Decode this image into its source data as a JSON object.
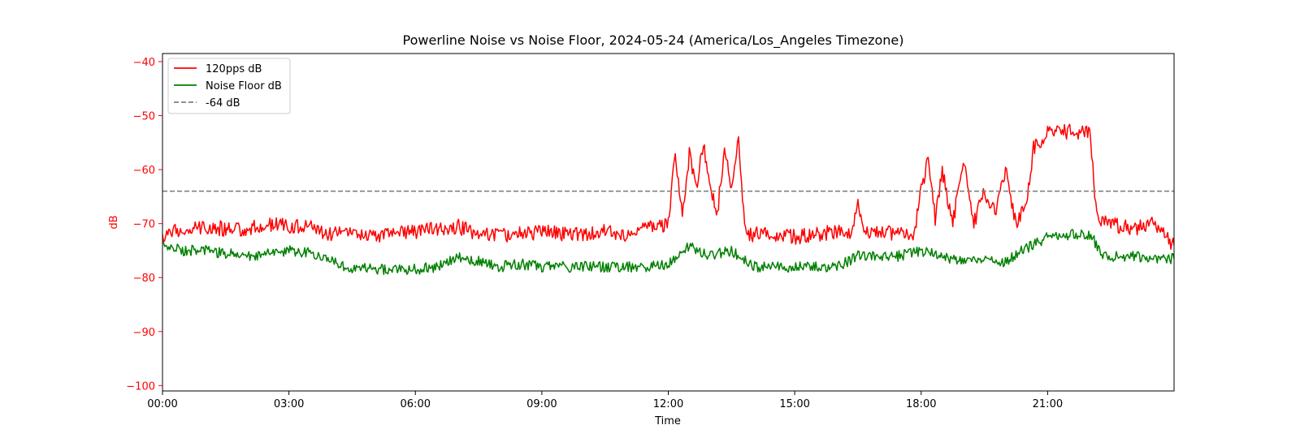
{
  "chart_data": {
    "type": "line",
    "title": "Powerline Noise vs Noise Floor, 2024-05-24 (America/Los_Angeles Timezone)",
    "xlabel": "Time",
    "ylabel": "dB",
    "x_range": [
      "00:00",
      "24:00"
    ],
    "ylim": [
      -101,
      -38.5
    ],
    "x_ticks": [
      "00:00",
      "03:00",
      "06:00",
      "09:00",
      "12:00",
      "15:00",
      "18:00",
      "21:00"
    ],
    "y_ticks": [
      -40,
      -50,
      -60,
      -70,
      -80,
      -90,
      -100
    ],
    "y_tick_labels": [
      "−40",
      "−50",
      "−60",
      "−70",
      "−80",
      "−90",
      "−100"
    ],
    "ylabel_color": "#ff0000",
    "grid": false,
    "legend_position": "upper-left",
    "series": [
      {
        "name": "120pps dB",
        "color": "#ff0000",
        "style": "solid",
        "points": [
          [
            "00:00",
            -72
          ],
          [
            "00:30",
            -71
          ],
          [
            "01:00",
            -70.5
          ],
          [
            "01:30",
            -71
          ],
          [
            "02:00",
            -71
          ],
          [
            "02:30",
            -70
          ],
          [
            "03:00",
            -70.5
          ],
          [
            "03:30",
            -70.5
          ],
          [
            "04:00",
            -72
          ],
          [
            "04:30",
            -72
          ],
          [
            "05:00",
            -72.5
          ],
          [
            "05:30",
            -72
          ],
          [
            "06:00",
            -71.5
          ],
          [
            "06:30",
            -71
          ],
          [
            "07:00",
            -70.5
          ],
          [
            "07:30",
            -72
          ],
          [
            "08:00",
            -72
          ],
          [
            "08:30",
            -72
          ],
          [
            "09:00",
            -71.5
          ],
          [
            "09:30",
            -72
          ],
          [
            "10:00",
            -72
          ],
          [
            "10:30",
            -71.5
          ],
          [
            "11:00",
            -72
          ],
          [
            "11:30",
            -71
          ],
          [
            "12:00",
            -70
          ],
          [
            "12:10",
            -57
          ],
          [
            "12:20",
            -69
          ],
          [
            "12:30",
            -57
          ],
          [
            "12:40",
            -64
          ],
          [
            "12:50",
            -55
          ],
          [
            "13:00",
            -64
          ],
          [
            "13:10",
            -68
          ],
          [
            "13:20",
            -56
          ],
          [
            "13:30",
            -63
          ],
          [
            "13:40",
            -55
          ],
          [
            "13:50",
            -72
          ],
          [
            "14:00",
            -72
          ],
          [
            "14:30",
            -72
          ],
          [
            "15:00",
            -72.5
          ],
          [
            "15:30",
            -72
          ],
          [
            "16:00",
            -71.5
          ],
          [
            "16:20",
            -72
          ],
          [
            "16:30",
            -66
          ],
          [
            "16:40",
            -72
          ],
          [
            "17:00",
            -71.5
          ],
          [
            "17:30",
            -72
          ],
          [
            "17:50",
            -72
          ],
          [
            "18:00",
            -64
          ],
          [
            "18:10",
            -58
          ],
          [
            "18:20",
            -69
          ],
          [
            "18:30",
            -60
          ],
          [
            "18:45",
            -70
          ],
          [
            "19:00",
            -58
          ],
          [
            "19:15",
            -70
          ],
          [
            "19:30",
            -64
          ],
          [
            "19:45",
            -68
          ],
          [
            "20:00",
            -60
          ],
          [
            "20:15",
            -70
          ],
          [
            "20:30",
            -66
          ],
          [
            "20:40",
            -56
          ],
          [
            "21:00",
            -53
          ],
          [
            "21:30",
            -53
          ],
          [
            "22:00",
            -53
          ],
          [
            "22:10",
            -69
          ],
          [
            "22:30",
            -70
          ],
          [
            "23:00",
            -71
          ],
          [
            "23:30",
            -70
          ],
          [
            "24:00",
            -74
          ]
        ]
      },
      {
        "name": "Noise Floor dB",
        "color": "#008000",
        "style": "solid",
        "points": [
          [
            "00:00",
            -74
          ],
          [
            "00:30",
            -75
          ],
          [
            "01:00",
            -75
          ],
          [
            "01:30",
            -75.5
          ],
          [
            "02:00",
            -76
          ],
          [
            "02:30",
            -75.5
          ],
          [
            "03:00",
            -75
          ],
          [
            "03:30",
            -75.5
          ],
          [
            "04:00",
            -76.5
          ],
          [
            "04:15",
            -78
          ],
          [
            "05:00",
            -78.5
          ],
          [
            "05:30",
            -78.5
          ],
          [
            "06:00",
            -78.5
          ],
          [
            "06:30",
            -78
          ],
          [
            "07:00",
            -76
          ],
          [
            "07:30",
            -77
          ],
          [
            "08:00",
            -78
          ],
          [
            "08:30",
            -77.5
          ],
          [
            "09:00",
            -78
          ],
          [
            "09:30",
            -78
          ],
          [
            "10:00",
            -78
          ],
          [
            "10:30",
            -78
          ],
          [
            "11:00",
            -78
          ],
          [
            "11:30",
            -78
          ],
          [
            "12:00",
            -77.5
          ],
          [
            "12:30",
            -74
          ],
          [
            "13:00",
            -76
          ],
          [
            "13:30",
            -75
          ],
          [
            "14:00",
            -78
          ],
          [
            "14:30",
            -78
          ],
          [
            "15:00",
            -78
          ],
          [
            "15:30",
            -78
          ],
          [
            "16:00",
            -78
          ],
          [
            "16:30",
            -76
          ],
          [
            "17:00",
            -76
          ],
          [
            "17:30",
            -76
          ],
          [
            "18:00",
            -75
          ],
          [
            "18:30",
            -76
          ],
          [
            "19:00",
            -77
          ],
          [
            "19:30",
            -77
          ],
          [
            "20:00",
            -77
          ],
          [
            "20:30",
            -74.5
          ],
          [
            "21:00",
            -72.5
          ],
          [
            "21:30",
            -72
          ],
          [
            "22:00",
            -72
          ],
          [
            "22:20",
            -76
          ],
          [
            "23:00",
            -76
          ],
          [
            "23:30",
            -76.5
          ],
          [
            "24:00",
            -76.5
          ]
        ]
      },
      {
        "name": "-64 dB",
        "color": "#808080",
        "style": "dashed",
        "points": [
          [
            "00:00",
            -64
          ],
          [
            "24:00",
            -64
          ]
        ]
      }
    ]
  }
}
